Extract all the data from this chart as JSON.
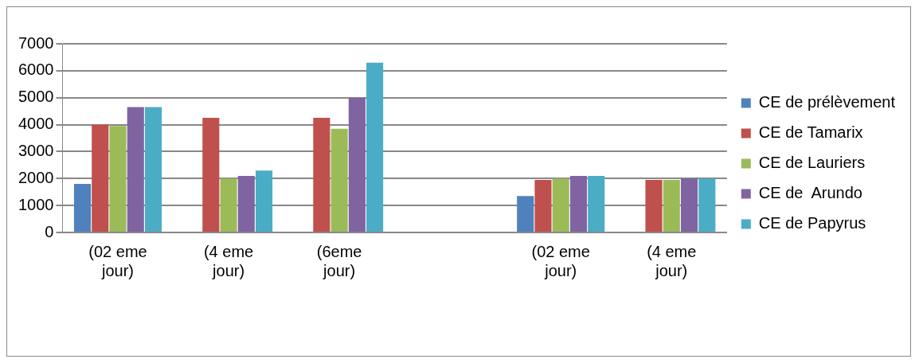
{
  "chart_data": {
    "type": "bar",
    "categories": [
      "(02 eme jour)",
      "(4 eme jour)",
      "(6eme jour)",
      null,
      "(02 eme jour)",
      "(4 eme jour)"
    ],
    "series": [
      {
        "name": "CE de prélèvement",
        "color": "#4f81bd",
        "values": [
          1800,
          null,
          null,
          null,
          1350,
          null
        ]
      },
      {
        "name": "CE de Tamarix",
        "color": "#c0504d",
        "values": [
          4000,
          4250,
          4250,
          null,
          1950,
          1950
        ]
      },
      {
        "name": "CE de Lauriers",
        "color": "#9bbb59",
        "values": [
          3950,
          2000,
          3850,
          null,
          2000,
          1950
        ]
      },
      {
        "name": "CE de  Arundo",
        "color": "#8064a2",
        "values": [
          4650,
          2100,
          5000,
          null,
          2100,
          2000
        ]
      },
      {
        "name": "CE de Papyrus",
        "color": "#4bacc6",
        "values": [
          4650,
          2300,
          6300,
          null,
          2100,
          2000
        ]
      }
    ],
    "ylim": [
      0,
      7000
    ],
    "yticks": [
      0,
      1000,
      2000,
      3000,
      4000,
      5000,
      6000,
      7000
    ],
    "grid": "y",
    "legend": "right"
  }
}
